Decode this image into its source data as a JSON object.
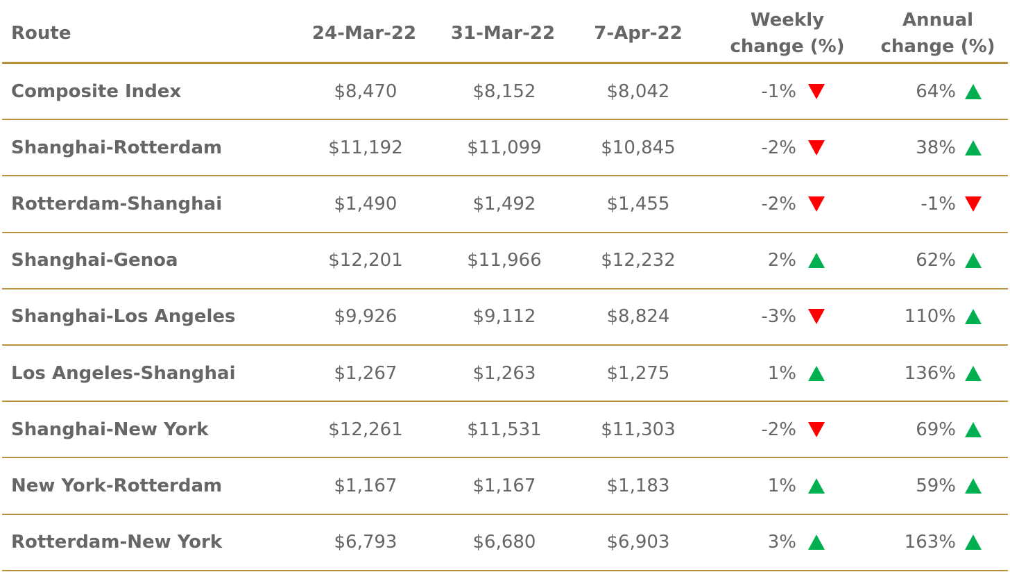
{
  "table": {
    "header": [
      "Route",
      "24-Mar-22",
      "31-Mar-22",
      "7-Apr-22",
      "Weekly change (%)",
      "Annual change (%)"
    ],
    "rows": [
      [
        "Composite Index",
        "$8,470",
        "$8,152",
        "$8,042",
        "-1%",
        "64%"
      ],
      [
        "Shanghai-Rotterdam",
        "$11,192",
        "$11,099",
        "$10,845",
        "-2%",
        "38%"
      ],
      [
        "Rotterdam-Shanghai",
        "$1,490",
        "$1,492",
        "$1,455",
        "-2%",
        "-1%"
      ],
      [
        "Shanghai-Genoa",
        "$12,201",
        "$11,966",
        "$12,232",
        "2%",
        "62%"
      ],
      [
        "Shanghai-Los Angeles",
        "$9,926",
        "$9,112",
        "$8,824",
        "-3%",
        "110%"
      ],
      [
        "Los Angeles-Shanghai",
        "$1,267",
        "$1,263",
        "$1,275",
        "1%",
        "136%"
      ],
      [
        "Shanghai-New York",
        "$12,261",
        "$11,531",
        "$11,303",
        "-2%",
        "69%"
      ],
      [
        "New York-Rotterdam",
        "$1,167",
        "$1,167",
        "$1,183",
        "1%",
        "59%"
      ],
      [
        "Rotterdam-New York",
        "$6,793",
        "$6,680",
        "$6,903",
        "3%",
        "163%"
      ]
    ]
  }
}
